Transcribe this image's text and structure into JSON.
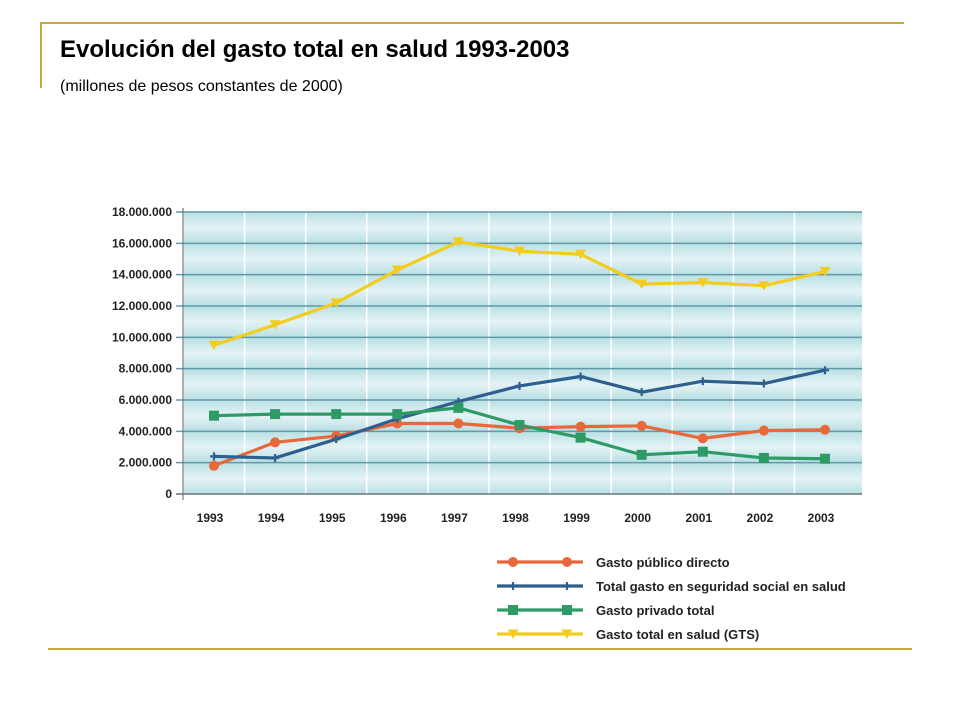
{
  "slide": {
    "title": "Evolución del gasto total en salud 1993-2003",
    "subtitle": "(millones de pesos constantes de 2000)",
    "accent_color": "#c8a63a"
  },
  "chart_data": {
    "type": "line",
    "title": "",
    "xlabel": "",
    "ylabel": "",
    "categories": [
      "1993",
      "1994",
      "1995",
      "1996",
      "1997",
      "1998",
      "1999",
      "2000",
      "2001",
      "2002",
      "2003"
    ],
    "ylim": [
      0,
      18000000
    ],
    "yticks": [
      0,
      2000000,
      4000000,
      6000000,
      8000000,
      10000000,
      12000000,
      14000000,
      16000000,
      18000000
    ],
    "ytick_labels": [
      "0",
      "2.000.000",
      "4.000.000",
      "6.000.000",
      "8.000.000",
      "10.000.000",
      "12.000.000",
      "14.000.000",
      "16.000.000",
      "18.000.000"
    ],
    "grid": true,
    "legend_position": "bottom-right",
    "series": [
      {
        "name": "Gasto público directo",
        "color": "#e8683a",
        "marker": "circle",
        "values": [
          1800000,
          3300000,
          3700000,
          4500000,
          4500000,
          4200000,
          4300000,
          4350000,
          3550000,
          4050000,
          4100000
        ]
      },
      {
        "name": "Total gasto en seguridad social en salud",
        "color": "#2f5f8f",
        "marker": "plus",
        "values": [
          2400000,
          2300000,
          3500000,
          4800000,
          5900000,
          6900000,
          7500000,
          6500000,
          7200000,
          7050000,
          7900000
        ]
      },
      {
        "name": "Gasto privado total",
        "color": "#2e9a66",
        "marker": "square",
        "values": [
          5000000,
          5100000,
          5100000,
          5100000,
          5500000,
          4400000,
          3600000,
          2500000,
          2700000,
          2300000,
          2250000
        ]
      },
      {
        "name": "Gasto total en salud (GTS)",
        "color": "#f2cd1f",
        "marker": "triangle-down",
        "values": [
          9500000,
          10800000,
          12200000,
          14300000,
          16100000,
          15500000,
          15300000,
          13400000,
          13500000,
          13300000,
          14200000
        ]
      }
    ]
  }
}
